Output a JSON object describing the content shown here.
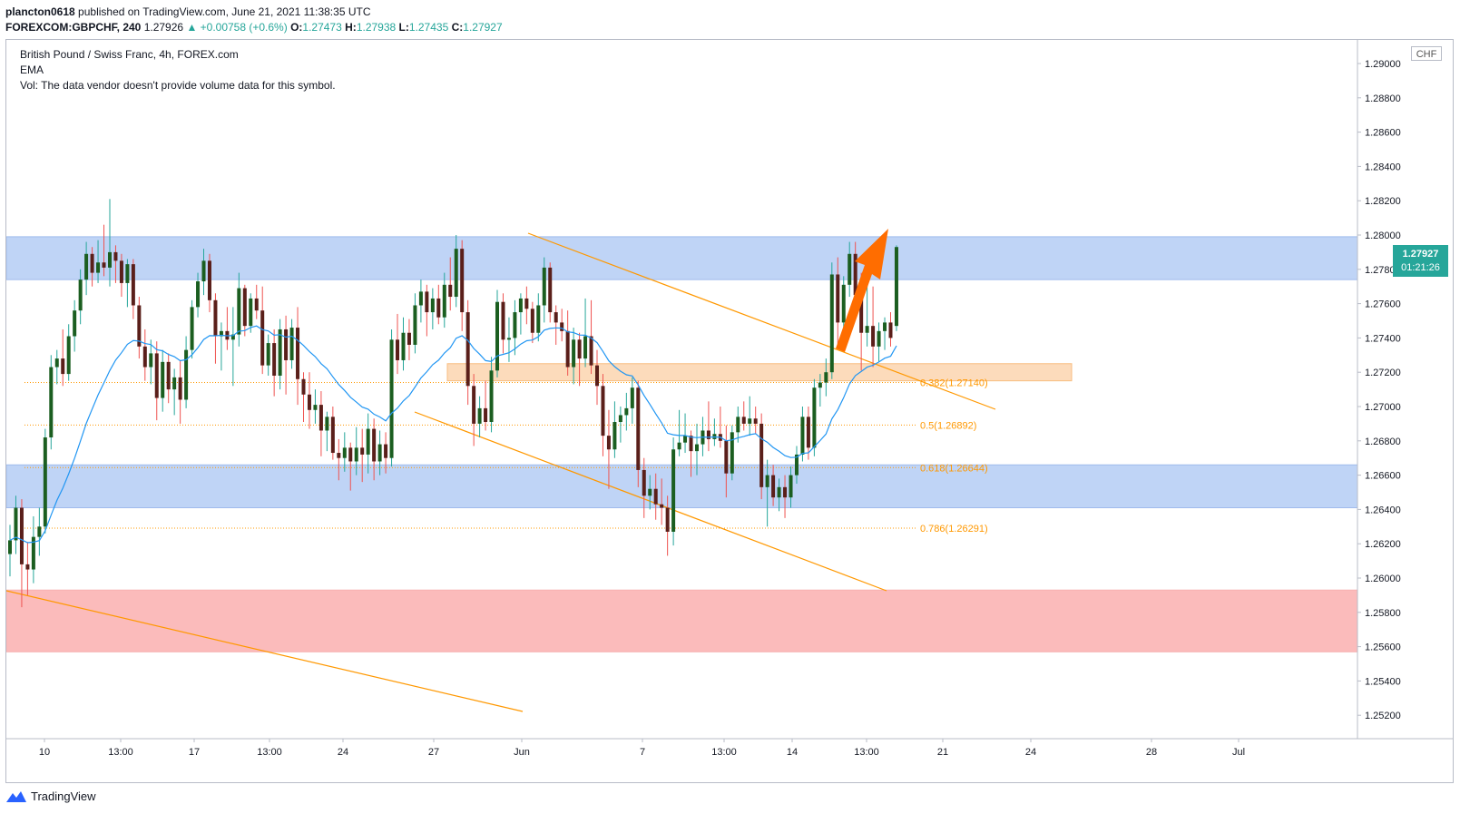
{
  "header": {
    "publisher": "plancton0618",
    "published_text": "published on TradingView.com, June 21, 2021 11:38:35 UTC",
    "symbol": "FOREXCOM:GBPCHF, 240",
    "last": "1.27926",
    "change": "▲ +0.00758 (+0.6%)",
    "open_label": "O:",
    "open": "1.27473",
    "high_label": "H:",
    "high": "1.27938",
    "low_label": "L:",
    "low": "1.27435",
    "close_label": "C:",
    "close": "1.27927"
  },
  "legend": {
    "title": "British Pound / Swiss Franc, 4h, FOREX.com",
    "ema": "EMA",
    "vol": "Vol: The data vendor doesn't provide volume data for this symbol."
  },
  "price_axis": {
    "currency": "CHF",
    "labels": [
      "1.29000",
      "1.28800",
      "1.28600",
      "1.28400",
      "1.28200",
      "1.28000",
      "1.27800",
      "1.27600",
      "1.27400",
      "1.27200",
      "1.27000",
      "1.26800",
      "1.26600",
      "1.26400",
      "1.26200",
      "1.26000",
      "1.25800",
      "1.25600",
      "1.25400",
      "1.25200"
    ]
  },
  "time_axis": {
    "labels": [
      "10",
      "13:00",
      "17",
      "13:00",
      "24",
      "27",
      "Jun",
      "7",
      "13:00",
      "14",
      "13:00",
      "21",
      "24",
      "28",
      "Jul"
    ]
  },
  "price_badge": {
    "price": "1.27927",
    "countdown": "01:21:26"
  },
  "fib_labels": {
    "f382": "0.382(1.27140)",
    "f5": "0.5(1.26892)",
    "f618": "0.618(1.26644)",
    "f786": "0.786(1.26291)"
  },
  "footer": {
    "brand": "TradingView"
  },
  "chart_data": {
    "type": "candlestick",
    "title": "British Pound / Swiss Franc, 4h, FOREX.com",
    "ylim": [
      1.2515,
      1.2915
    ],
    "colors": {
      "up": "#26a69a",
      "down": "#ef5350",
      "wick_up": "#26a69a",
      "ema": "#2196f3",
      "trend": "#ff9800",
      "zone_blue": "#b4cdf5",
      "zone_red": "#fbb0b0",
      "zone_orange": "#fcd5b0",
      "arrow": "#ff6d00"
    },
    "zones": [
      {
        "name": "resistance",
        "from": 1.2774,
        "to": 1.2799
      },
      {
        "name": "support",
        "from": 1.2641,
        "to": 1.2666
      },
      {
        "name": "demand",
        "from": 1.2557,
        "to": 1.2593
      },
      {
        "name": "fib-box",
        "from": 1.2715,
        "to": 1.2725
      }
    ],
    "fib_levels": [
      1.2714,
      1.26892,
      1.26644,
      1.26291
    ],
    "candles_ohlc": [
      [
        1.2614,
        1.2631,
        1.2601,
        1.2622
      ],
      [
        1.2622,
        1.2648,
        1.2614,
        1.2641
      ],
      [
        1.2641,
        1.2646,
        1.2583,
        1.2608
      ],
      [
        1.2608,
        1.2621,
        1.259,
        1.2605
      ],
      [
        1.2605,
        1.2636,
        1.2597,
        1.2624
      ],
      [
        1.2624,
        1.2641,
        1.2613,
        1.263
      ],
      [
        1.263,
        1.2687,
        1.2626,
        1.2682
      ],
      [
        1.2682,
        1.273,
        1.2675,
        1.2723
      ],
      [
        1.2723,
        1.2733,
        1.2713,
        1.2728
      ],
      [
        1.2728,
        1.2745,
        1.2712,
        1.2719
      ],
      [
        1.2719,
        1.2748,
        1.2715,
        1.2741
      ],
      [
        1.2741,
        1.2762,
        1.2732,
        1.2756
      ],
      [
        1.2756,
        1.278,
        1.2748,
        1.2774
      ],
      [
        1.2774,
        1.2796,
        1.2765,
        1.2789
      ],
      [
        1.2789,
        1.2793,
        1.277,
        1.2778
      ],
      [
        1.2778,
        1.2797,
        1.2772,
        1.2784
      ],
      [
        1.2784,
        1.2806,
        1.2776,
        1.2781
      ],
      [
        1.2781,
        1.2821,
        1.277,
        1.279
      ],
      [
        1.279,
        1.2794,
        1.2772,
        1.2785
      ],
      [
        1.2785,
        1.2789,
        1.2764,
        1.2772
      ],
      [
        1.2772,
        1.2786,
        1.2758,
        1.2783
      ],
      [
        1.2783,
        1.2786,
        1.2751,
        1.2759
      ],
      [
        1.2759,
        1.2764,
        1.2728,
        1.2735
      ],
      [
        1.2735,
        1.2745,
        1.2715,
        1.2723
      ],
      [
        1.2723,
        1.2739,
        1.2713,
        1.2731
      ],
      [
        1.2731,
        1.2738,
        1.2692,
        1.2705
      ],
      [
        1.2705,
        1.2733,
        1.2697,
        1.2726
      ],
      [
        1.2726,
        1.2731,
        1.2702,
        1.271
      ],
      [
        1.271,
        1.2722,
        1.2695,
        1.2717
      ],
      [
        1.2717,
        1.2727,
        1.269,
        1.2704
      ],
      [
        1.2704,
        1.2741,
        1.2699,
        1.2733
      ],
      [
        1.2733,
        1.2762,
        1.2728,
        1.2758
      ],
      [
        1.2758,
        1.2778,
        1.2752,
        1.2773
      ],
      [
        1.2773,
        1.2792,
        1.2765,
        1.2785
      ],
      [
        1.2785,
        1.2789,
        1.2755,
        1.2762
      ],
      [
        1.2762,
        1.2766,
        1.2725,
        1.2741
      ],
      [
        1.2741,
        1.2749,
        1.2721,
        1.2744
      ],
      [
        1.2744,
        1.2758,
        1.2733,
        1.2739
      ],
      [
        1.2739,
        1.2758,
        1.2712,
        1.2742
      ],
      [
        1.2742,
        1.2778,
        1.2735,
        1.2769
      ],
      [
        1.2769,
        1.2771,
        1.2741,
        1.2747
      ],
      [
        1.2747,
        1.2766,
        1.2743,
        1.2763
      ],
      [
        1.2763,
        1.2771,
        1.2751,
        1.2756
      ],
      [
        1.2756,
        1.277,
        1.2719,
        1.2724
      ],
      [
        1.2724,
        1.2742,
        1.2718,
        1.2737
      ],
      [
        1.2737,
        1.2745,
        1.2706,
        1.2718
      ],
      [
        1.2718,
        1.2751,
        1.271,
        1.2745
      ],
      [
        1.2745,
        1.2753,
        1.2707,
        1.2727
      ],
      [
        1.2727,
        1.2751,
        1.2722,
        1.2746
      ],
      [
        1.2746,
        1.2758,
        1.2701,
        1.2716
      ],
      [
        1.2716,
        1.272,
        1.2691,
        1.2707
      ],
      [
        1.2707,
        1.272,
        1.2687,
        1.2698
      ],
      [
        1.2698,
        1.271,
        1.269,
        1.2701
      ],
      [
        1.2701,
        1.2709,
        1.2671,
        1.2686
      ],
      [
        1.2686,
        1.2697,
        1.2674,
        1.2694
      ],
      [
        1.2694,
        1.27,
        1.2669,
        1.2673
      ],
      [
        1.2673,
        1.2681,
        1.2657,
        1.267
      ],
      [
        1.267,
        1.2685,
        1.2662,
        1.2676
      ],
      [
        1.2676,
        1.2679,
        1.2651,
        1.2668
      ],
      [
        1.2668,
        1.2688,
        1.266,
        1.2676
      ],
      [
        1.2676,
        1.2687,
        1.2656,
        1.2672
      ],
      [
        1.2672,
        1.2696,
        1.2661,
        1.2687
      ],
      [
        1.2687,
        1.2693,
        1.2657,
        1.2668
      ],
      [
        1.2668,
        1.2686,
        1.266,
        1.2678
      ],
      [
        1.2678,
        1.2685,
        1.2661,
        1.267
      ],
      [
        1.267,
        1.2745,
        1.2665,
        1.2739
      ],
      [
        1.2739,
        1.2754,
        1.2719,
        1.2727
      ],
      [
        1.2727,
        1.2752,
        1.2721,
        1.2743
      ],
      [
        1.2743,
        1.2751,
        1.2727,
        1.2736
      ],
      [
        1.2736,
        1.2766,
        1.2731,
        1.2759
      ],
      [
        1.2759,
        1.2774,
        1.2749,
        1.2767
      ],
      [
        1.2767,
        1.2771,
        1.2741,
        1.2755
      ],
      [
        1.2755,
        1.2769,
        1.2745,
        1.2763
      ],
      [
        1.2763,
        1.2771,
        1.2748,
        1.2752
      ],
      [
        1.2752,
        1.2778,
        1.2746,
        1.2771
      ],
      [
        1.2771,
        1.2787,
        1.2756,
        1.2764
      ],
      [
        1.2764,
        1.28,
        1.2758,
        1.2792
      ],
      [
        1.2792,
        1.2797,
        1.2744,
        1.2755
      ],
      [
        1.2755,
        1.2762,
        1.2701,
        1.2712
      ],
      [
        1.2712,
        1.2719,
        1.2677,
        1.269
      ],
      [
        1.269,
        1.2706,
        1.2682,
        1.2699
      ],
      [
        1.2699,
        1.2715,
        1.2686,
        1.2691
      ],
      [
        1.2691,
        1.2729,
        1.2685,
        1.2721
      ],
      [
        1.2721,
        1.2768,
        1.2717,
        1.2761
      ],
      [
        1.2761,
        1.2766,
        1.2731,
        1.2739
      ],
      [
        1.2739,
        1.2752,
        1.2726,
        1.274
      ],
      [
        1.274,
        1.2762,
        1.273,
        1.2755
      ],
      [
        1.2755,
        1.2766,
        1.2742,
        1.2763
      ],
      [
        1.2763,
        1.277,
        1.2748,
        1.2757
      ],
      [
        1.2757,
        1.2761,
        1.2737,
        1.2743
      ],
      [
        1.2743,
        1.2766,
        1.2738,
        1.2759
      ],
      [
        1.2759,
        1.2787,
        1.2749,
        1.2781
      ],
      [
        1.2781,
        1.2784,
        1.2749,
        1.2755
      ],
      [
        1.2755,
        1.2759,
        1.2736,
        1.2749
      ],
      [
        1.2749,
        1.2757,
        1.2738,
        1.2744
      ],
      [
        1.2744,
        1.2756,
        1.2718,
        1.2723
      ],
      [
        1.2723,
        1.2746,
        1.2713,
        1.2739
      ],
      [
        1.2739,
        1.2743,
        1.2712,
        1.2728
      ],
      [
        1.2728,
        1.2763,
        1.2723,
        1.2741
      ],
      [
        1.2741,
        1.2762,
        1.2719,
        1.2724
      ],
      [
        1.2724,
        1.2733,
        1.2701,
        1.2712
      ],
      [
        1.2712,
        1.2719,
        1.2671,
        1.2683
      ],
      [
        1.2683,
        1.2698,
        1.2652,
        1.2675
      ],
      [
        1.2675,
        1.2703,
        1.267,
        1.2691
      ],
      [
        1.2691,
        1.27,
        1.2679,
        1.2695
      ],
      [
        1.2695,
        1.2708,
        1.2686,
        1.2699
      ],
      [
        1.2699,
        1.2717,
        1.269,
        1.2711
      ],
      [
        1.2711,
        1.2715,
        1.2653,
        1.2663
      ],
      [
        1.2663,
        1.267,
        1.2635,
        1.2648
      ],
      [
        1.2648,
        1.266,
        1.264,
        1.2652
      ],
      [
        1.2652,
        1.2661,
        1.2634,
        1.2643
      ],
      [
        1.2643,
        1.2658,
        1.2631,
        1.2641
      ],
      [
        1.2641,
        1.2648,
        1.2613,
        1.2627
      ],
      [
        1.2627,
        1.2682,
        1.2619,
        1.2675
      ],
      [
        1.2675,
        1.2698,
        1.2671,
        1.2679
      ],
      [
        1.2679,
        1.2696,
        1.2673,
        1.2683
      ],
      [
        1.2683,
        1.2686,
        1.2659,
        1.2674
      ],
      [
        1.2674,
        1.269,
        1.266,
        1.2678
      ],
      [
        1.2678,
        1.2694,
        1.2671,
        1.2686
      ],
      [
        1.2686,
        1.2703,
        1.2674,
        1.2681
      ],
      [
        1.2681,
        1.2693,
        1.2677,
        1.2684
      ],
      [
        1.2684,
        1.27,
        1.2676,
        1.268
      ],
      [
        1.268,
        1.2689,
        1.2647,
        1.2661
      ],
      [
        1.2661,
        1.2689,
        1.2657,
        1.2685
      ],
      [
        1.2685,
        1.27,
        1.2679,
        1.2694
      ],
      [
        1.2694,
        1.2703,
        1.2686,
        1.269
      ],
      [
        1.269,
        1.2706,
        1.2683,
        1.2693
      ],
      [
        1.2693,
        1.27,
        1.2684,
        1.269
      ],
      [
        1.269,
        1.2696,
        1.2646,
        1.2653
      ],
      [
        1.2653,
        1.2669,
        1.263,
        1.266
      ],
      [
        1.266,
        1.2666,
        1.2642,
        1.2647
      ],
      [
        1.2647,
        1.2658,
        1.2639,
        1.2653
      ],
      [
        1.2653,
        1.266,
        1.2635,
        1.2647
      ],
      [
        1.2647,
        1.2665,
        1.2641,
        1.266
      ],
      [
        1.266,
        1.2677,
        1.2655,
        1.2672
      ],
      [
        1.2672,
        1.27,
        1.2668,
        1.2694
      ],
      [
        1.2694,
        1.27,
        1.2669,
        1.2676
      ],
      [
        1.2676,
        1.2716,
        1.2671,
        1.2711
      ],
      [
        1.2711,
        1.2719,
        1.27,
        1.2714
      ],
      [
        1.2714,
        1.2728,
        1.2706,
        1.272
      ],
      [
        1.272,
        1.2784,
        1.2716,
        1.2777
      ],
      [
        1.2777,
        1.2787,
        1.2736,
        1.2749
      ],
      [
        1.2749,
        1.2776,
        1.2742,
        1.2771
      ],
      [
        1.2771,
        1.2796,
        1.2764,
        1.2789
      ],
      [
        1.2789,
        1.2796,
        1.2759,
        1.2765
      ],
      [
        1.2765,
        1.2778,
        1.2721,
        1.2743
      ],
      [
        1.2743,
        1.2785,
        1.2735,
        1.2747
      ],
      [
        1.2747,
        1.277,
        1.2723,
        1.2735
      ],
      [
        1.2735,
        1.2749,
        1.2726,
        1.2744
      ],
      [
        1.2744,
        1.2752,
        1.2733,
        1.2749
      ],
      [
        1.2749,
        1.2755,
        1.2735,
        1.274
      ],
      [
        1.2747,
        1.2794,
        1.2744,
        1.2793
      ]
    ]
  }
}
